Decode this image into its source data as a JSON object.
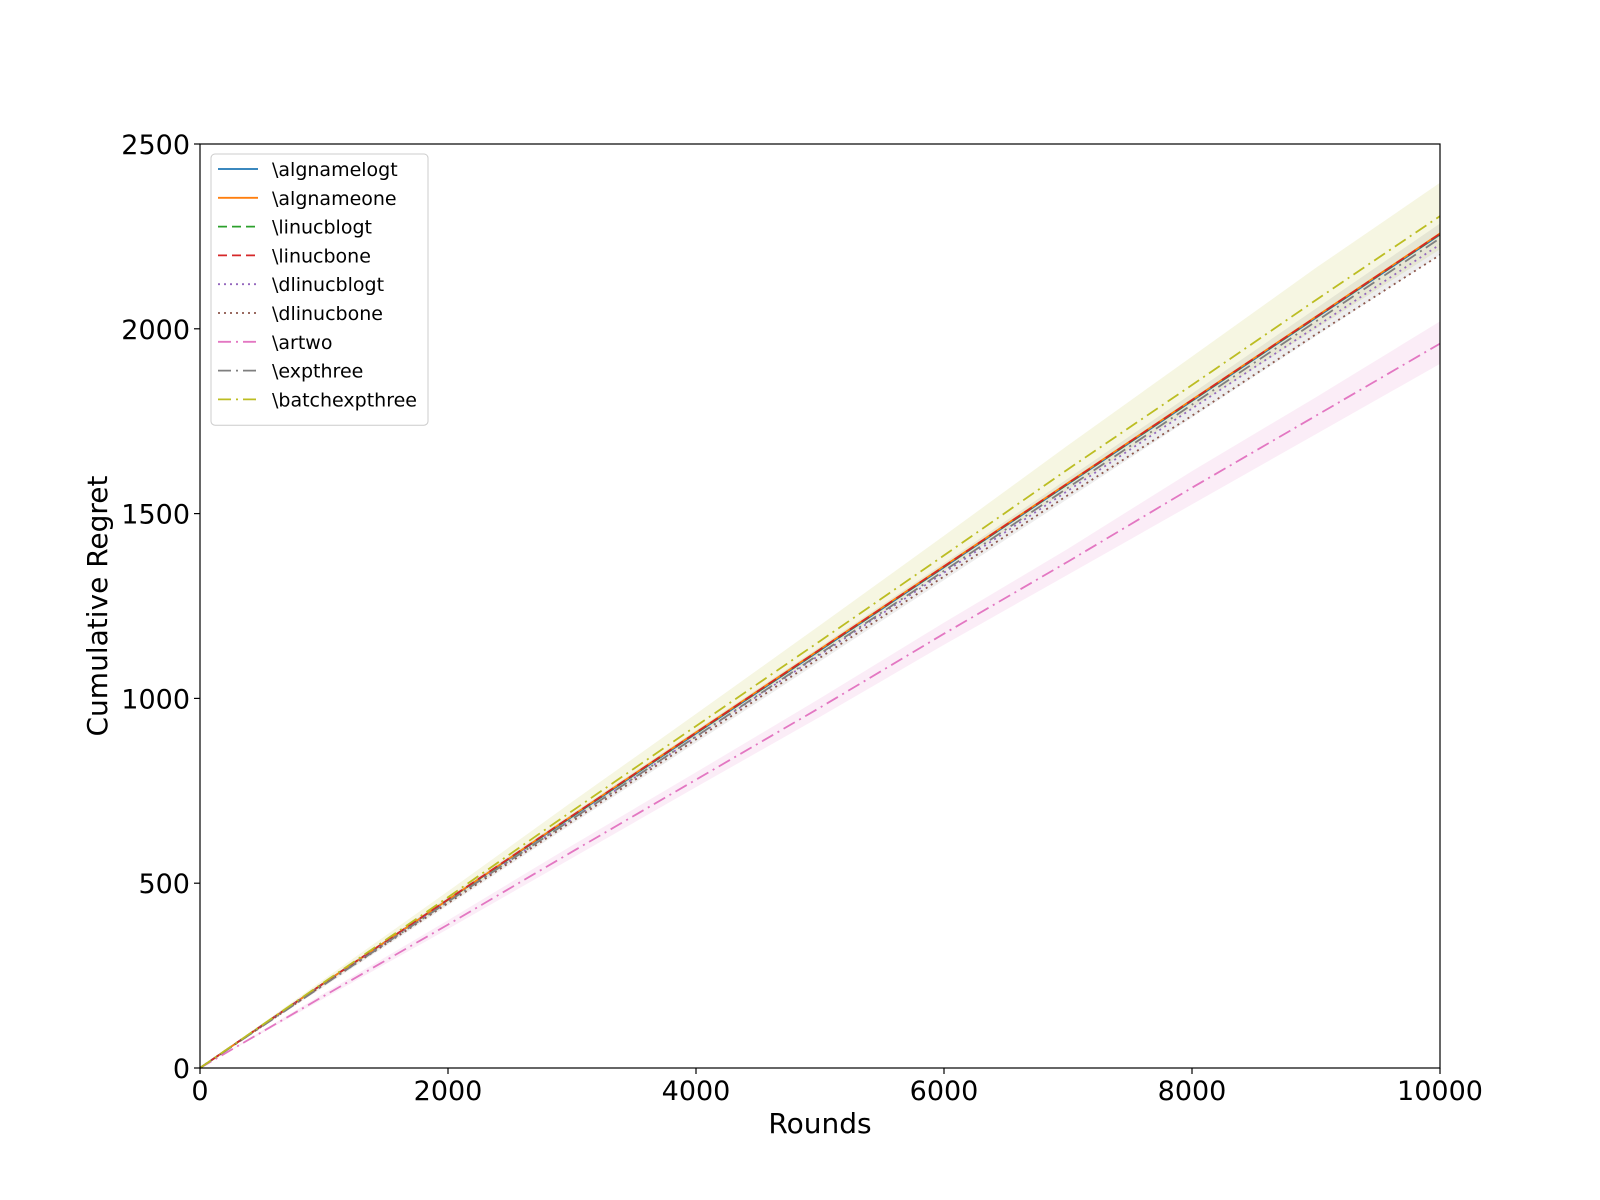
{
  "chart_data": {
    "type": "line",
    "xlabel": "Rounds",
    "ylabel": "Cumulative Regret",
    "xlim": [
      0,
      10000
    ],
    "ylim": [
      0,
      2500
    ],
    "xticks": [
      0,
      2000,
      4000,
      6000,
      8000,
      10000
    ],
    "xtick_labels": [
      "0",
      "2000",
      "4000",
      "6000",
      "8000",
      "10000"
    ],
    "yticks": [
      0,
      500,
      1000,
      1500,
      2000,
      2500
    ],
    "ytick_labels": [
      "0",
      "500",
      "1000",
      "1500",
      "2000",
      "2500"
    ],
    "grid": false,
    "legend_position": "top-left",
    "x": [
      0,
      1000,
      2000,
      3000,
      4000,
      5000,
      6000,
      7000,
      8000,
      9000,
      10000
    ],
    "series": [
      {
        "name": "\\algnamelogt",
        "color": "#1f77b4",
        "dash": "solid",
        "values": [
          0,
          230,
          455,
          680,
          905,
          1130,
          1355,
          1580,
          1805,
          2030,
          2255
        ]
      },
      {
        "name": "\\algnameone",
        "color": "#ff7f0e",
        "dash": "solid",
        "values": [
          0,
          230,
          455,
          682,
          908,
          1133,
          1358,
          1583,
          1808,
          2033,
          2258
        ]
      },
      {
        "name": "\\linucblogt",
        "color": "#2ca02c",
        "dash": "dashed",
        "values": [
          0,
          230,
          455,
          681,
          906,
          1131,
          1356,
          1581,
          1806,
          2031,
          2256
        ]
      },
      {
        "name": "\\linucbone",
        "color": "#d62728",
        "dash": "dashed",
        "values": [
          0,
          230,
          456,
          682,
          907,
          1132,
          1357,
          1582,
          1807,
          2032,
          2257
        ]
      },
      {
        "name": "\\dlinucblogt",
        "color": "#9467bd",
        "dash": "dotted",
        "values": [
          0,
          228,
          450,
          673,
          896,
          1118,
          1340,
          1562,
          1784,
          2006,
          2228
        ]
      },
      {
        "name": "\\dlinucbone",
        "color": "#8c564b",
        "dash": "dotted",
        "values": [
          0,
          226,
          446,
          667,
          889,
          1110,
          1330,
          1550,
          1765,
          1985,
          2200
        ]
      },
      {
        "name": "\\artwo",
        "color": "#e377c2",
        "dash": "dashdot",
        "values": [
          0,
          195,
          388,
          585,
          780,
          975,
          1175,
          1370,
          1570,
          1765,
          1960
        ]
      },
      {
        "name": "\\expthree",
        "color": "#7f7f7f",
        "dash": "dashdot",
        "values": [
          0,
          225,
          450,
          673,
          897,
          1121,
          1345,
          1570,
          1795,
          2020,
          2245
        ]
      },
      {
        "name": "\\batchexpthree",
        "color": "#bcbd22",
        "dash": "dashdot",
        "values": [
          0,
          232,
          462,
          695,
          925,
          1155,
          1387,
          1620,
          1848,
          2078,
          2305
        ]
      }
    ],
    "bands": [
      {
        "series": "\\batchexpthree",
        "color": "#bcbd22",
        "lower": [
          0,
          225,
          445,
          670,
          895,
          1120,
          1345,
          1565,
          1785,
          2000,
          2215
        ],
        "upper": [
          0,
          240,
          478,
          720,
          958,
          1198,
          1440,
          1685,
          1925,
          2165,
          2395
        ]
      },
      {
        "series": "\\artwo",
        "color": "#e377c2",
        "lower": [
          0,
          188,
          376,
          568,
          760,
          950,
          1145,
          1335,
          1525,
          1715,
          1905
        ],
        "upper": [
          0,
          202,
          400,
          602,
          800,
          1000,
          1205,
          1405,
          1615,
          1815,
          2020
        ]
      },
      {
        "series": "\\expthree",
        "color": "#7f7f7f",
        "lower": [
          0,
          220,
          440,
          660,
          880,
          1100,
          1320,
          1540,
          1760,
          1980,
          2200
        ],
        "upper": [
          0,
          232,
          462,
          688,
          914,
          1140,
          1366,
          1595,
          1825,
          2055,
          2285
        ]
      }
    ]
  }
}
